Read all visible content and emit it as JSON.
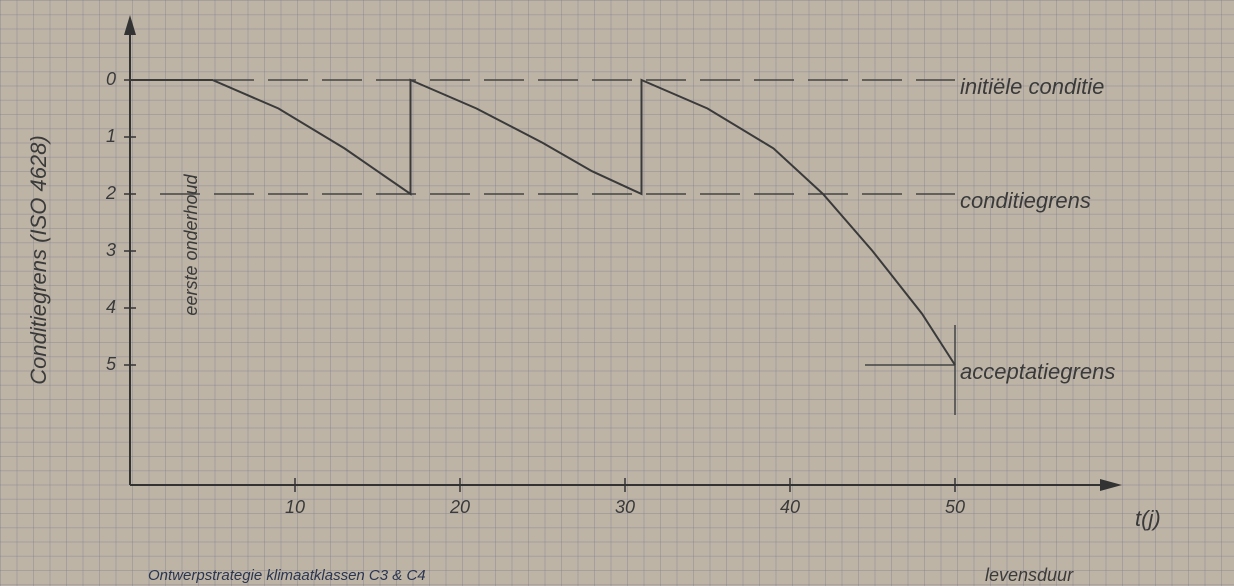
{
  "chart_data": {
    "type": "line",
    "y_label": "Conditiegrens (ISO 4628)",
    "x_label": "t(j)",
    "x_caption": "levensduur",
    "caption": "Ontwerpstrategie klimaatklassen C3 & C4",
    "annotation": "eerste onderhoud",
    "series": [
      {
        "color": "#3a3a3a",
        "x": [
          0,
          5,
          9,
          13,
          17,
          17,
          21,
          25,
          28,
          31,
          31,
          35,
          39,
          42,
          45,
          48,
          50
        ],
        "values": [
          0,
          0,
          0.5,
          1.2,
          2,
          0,
          0.5,
          1.1,
          1.6,
          2,
          0,
          0.5,
          1.2,
          2,
          3,
          4.1,
          5
        ]
      }
    ],
    "reference_lines": [
      {
        "label": "initiële conditie",
        "value": 0
      },
      {
        "label": "conditiegrens",
        "value": 2
      },
      {
        "label": "acceptatiegrens",
        "value": 5
      }
    ],
    "xlim": [
      0,
      60
    ],
    "ylim": [
      0,
      7
    ],
    "y_inverted": true,
    "xticks": [
      10,
      20,
      30,
      40,
      50
    ],
    "yticks": [
      0,
      1,
      2,
      3,
      4,
      5
    ]
  }
}
